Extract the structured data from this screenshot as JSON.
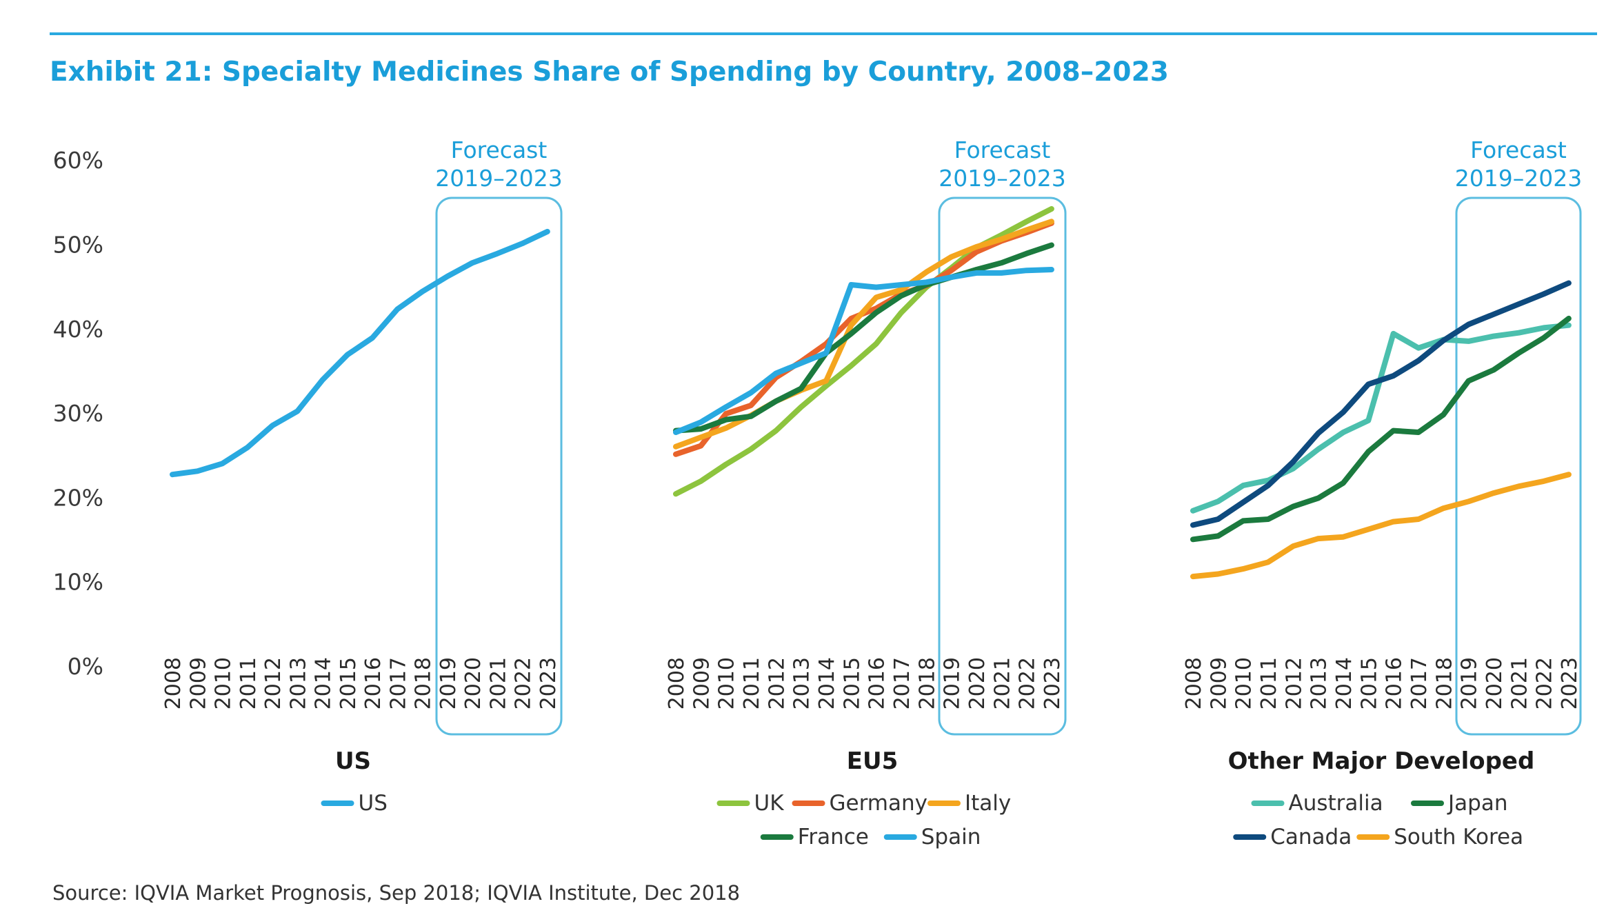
{
  "title": "Exhibit 21: Specialty Medicines Share of Spending by Country, 2008–2023",
  "source": "Source: IQVIA Market Prognosis, Sep 2018; IQVIA Institute, Dec 2018",
  "forecast_label_line1": "Forecast",
  "forecast_label_line2": "2019–2023",
  "y_tick_labels": [
    "0%",
    "10%",
    "20%",
    "30%",
    "40%",
    "50%",
    "60%"
  ],
  "colors": {
    "accent": "#1a9ed9",
    "forecast_box": "#5bbde0",
    "US": "#29a9e0",
    "UK": "#8dc43e",
    "Germany": "#e8632b",
    "Italy": "#f4a51e",
    "France": "#1b7a3e",
    "Spain": "#29a9e0",
    "Australia": "#4bbfad",
    "Japan": "#1b7a3e",
    "Canada": "#0e4a7e",
    "South Korea": "#f4a51e"
  },
  "chart_data": [
    {
      "type": "line",
      "title": "US",
      "x": [
        "2008",
        "2009",
        "2010",
        "2011",
        "2012",
        "2013",
        "2014",
        "2015",
        "2016",
        "2017",
        "2018",
        "2019",
        "2020",
        "2021",
        "2022",
        "2023"
      ],
      "ylim": [
        0,
        60
      ],
      "ytick_format": "percent",
      "forecast_range": [
        "2019",
        "2023"
      ],
      "series": [
        {
          "name": "US",
          "values": [
            22.8,
            23.2,
            24.1,
            26.0,
            28.6,
            30.3,
            34.0,
            37.0,
            39.0,
            42.4,
            44.5,
            46.3,
            47.9,
            49.0,
            50.2,
            51.6
          ]
        }
      ],
      "legend_rows": [
        [
          "US"
        ]
      ]
    },
    {
      "type": "line",
      "title": "EU5",
      "x": [
        "2008",
        "2009",
        "2010",
        "2011",
        "2012",
        "2013",
        "2014",
        "2015",
        "2016",
        "2017",
        "2018",
        "2019",
        "2020",
        "2021",
        "2022",
        "2023"
      ],
      "ylim": [
        0,
        60
      ],
      "ytick_format": "percent",
      "forecast_range": [
        "2019",
        "2023"
      ],
      "series": [
        {
          "name": "UK",
          "values": [
            20.5,
            22.0,
            24.0,
            25.8,
            28.0,
            30.8,
            33.3,
            35.7,
            38.3,
            42.0,
            45.0,
            47.3,
            49.7,
            51.2,
            52.8,
            54.3
          ]
        },
        {
          "name": "Germany",
          "values": [
            25.2,
            26.2,
            30.0,
            31.0,
            34.3,
            36.2,
            38.3,
            41.3,
            42.5,
            44.2,
            45.2,
            47.0,
            49.2,
            50.5,
            51.5,
            52.6
          ]
        },
        {
          "name": "Italy",
          "values": [
            26.1,
            27.2,
            28.3,
            29.8,
            31.5,
            32.8,
            33.9,
            40.5,
            43.8,
            44.7,
            46.8,
            48.6,
            49.8,
            50.7,
            51.8,
            52.8
          ]
        },
        {
          "name": "France",
          "values": [
            28.0,
            28.2,
            29.3,
            29.7,
            31.5,
            33.0,
            37.2,
            39.5,
            42.0,
            44.0,
            45.3,
            46.2,
            47.1,
            47.9,
            49.0,
            50.0
          ]
        },
        {
          "name": "Spain",
          "values": [
            27.8,
            29.0,
            30.8,
            32.5,
            34.8,
            36.0,
            37.2,
            45.3,
            45.0,
            45.3,
            45.6,
            46.2,
            46.7,
            46.7,
            47.0,
            47.1
          ]
        }
      ],
      "legend_rows": [
        [
          "UK",
          "Germany",
          "Italy"
        ],
        [
          "France",
          "Spain"
        ]
      ]
    },
    {
      "type": "line",
      "title": "Other Major Developed",
      "x": [
        "2008",
        "2009",
        "2010",
        "2011",
        "2012",
        "2013",
        "2014",
        "2015",
        "2016",
        "2017",
        "2018",
        "2019",
        "2020",
        "2021",
        "2022",
        "2023"
      ],
      "ylim": [
        0,
        60
      ],
      "ytick_format": "percent",
      "forecast_range": [
        "2019",
        "2023"
      ],
      "series": [
        {
          "name": "Australia",
          "values": [
            18.5,
            19.6,
            21.5,
            22.1,
            23.5,
            25.8,
            27.8,
            29.2,
            39.5,
            37.8,
            38.8,
            38.6,
            39.2,
            39.6,
            40.2,
            40.5
          ]
        },
        {
          "name": "Japan",
          "values": [
            15.1,
            15.5,
            17.3,
            17.5,
            19.0,
            20.0,
            21.8,
            25.5,
            28.0,
            27.8,
            29.9,
            33.9,
            35.2,
            37.2,
            39.0,
            41.3
          ]
        },
        {
          "name": "Canada",
          "values": [
            16.8,
            17.5,
            19.5,
            21.5,
            24.3,
            27.7,
            30.2,
            33.5,
            34.5,
            36.3,
            38.7,
            40.6,
            41.8,
            43.0,
            44.2,
            45.5
          ]
        },
        {
          "name": "South Korea",
          "values": [
            10.7,
            11.0,
            11.6,
            12.4,
            14.3,
            15.2,
            15.4,
            16.3,
            17.2,
            17.5,
            18.8,
            19.6,
            20.6,
            21.4,
            22.0,
            22.8
          ]
        }
      ],
      "legend_rows": [
        [
          "Australia",
          "Japan"
        ],
        [
          "Canada",
          "South Korea"
        ]
      ]
    }
  ]
}
